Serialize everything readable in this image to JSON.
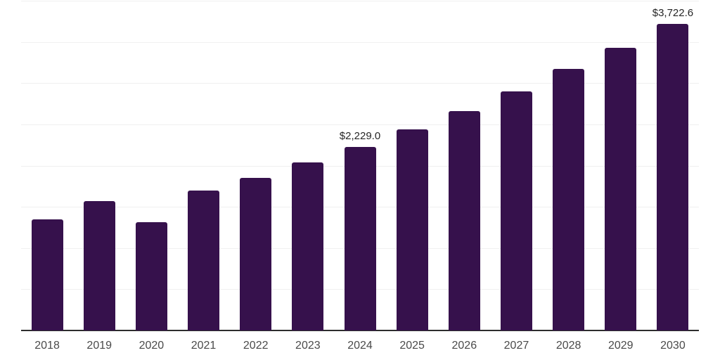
{
  "chart_data": {
    "type": "bar",
    "categories": [
      "2018",
      "2019",
      "2020",
      "2021",
      "2022",
      "2023",
      "2024",
      "2025",
      "2026",
      "2027",
      "2028",
      "2029",
      "2030"
    ],
    "values": [
      1350,
      1570,
      1310,
      1700,
      1850,
      2040,
      2229.0,
      2440,
      2660,
      2900,
      3170,
      3430,
      3722.6
    ],
    "data_labels": {
      "2024": "$2,229.0",
      "2030": "$3,722.6"
    },
    "title": "",
    "xlabel": "",
    "ylabel": "",
    "ylim": [
      0,
      4000
    ],
    "grid_step": 500,
    "grid": true,
    "legend_position": "none",
    "colors": {
      "bar": "#36114c",
      "grid": "#f0f0f0",
      "axis": "#2e2e2e",
      "tick_label": "#4a4a4a",
      "value_label": "#262626",
      "background": "#ffffff"
    }
  }
}
